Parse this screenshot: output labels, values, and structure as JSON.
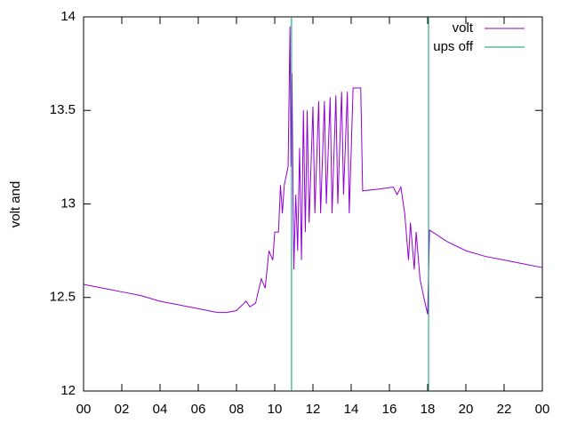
{
  "chart_data": {
    "type": "line",
    "ylabel": "volt and",
    "xlim": [
      0,
      24
    ],
    "xticks": [
      {
        "value": 0,
        "label": "00"
      },
      {
        "value": 2,
        "label": "02"
      },
      {
        "value": 4,
        "label": "04"
      },
      {
        "value": 6,
        "label": "06"
      },
      {
        "value": 8,
        "label": "08"
      },
      10,
      12,
      14,
      16,
      18,
      20,
      22,
      {
        "value": 24,
        "label": "00"
      }
    ],
    "ylim": [
      12,
      14
    ],
    "yticks": [
      12,
      12.5,
      13,
      13.5,
      14
    ],
    "legend": "top-right",
    "series": [
      {
        "name": "volt",
        "color": "#9400d3",
        "x": [
          0,
          1,
          2,
          3,
          4,
          5,
          6,
          7,
          7.5,
          8,
          8.3,
          8.5,
          8.7,
          9,
          9.3,
          9.5,
          9.7,
          9.9,
          10,
          10.2,
          10.3,
          10.4,
          10.5,
          10.7,
          10.8,
          10.85,
          10.9,
          11.0,
          11.1,
          11.2,
          11.3,
          11.4,
          11.5,
          11.6,
          11.7,
          11.8,
          12.0,
          12.1,
          12.3,
          12.4,
          12.6,
          12.7,
          12.9,
          13.0,
          13.2,
          13.3,
          13.5,
          13.6,
          13.8,
          13.9,
          14.1,
          14.5,
          14.6,
          15.5,
          16.2,
          16.4,
          16.6,
          16.8,
          17.0,
          17.1,
          17.3,
          17.4,
          17.6,
          17.8,
          18.0,
          18.05,
          18.1,
          19,
          20,
          21,
          22,
          23,
          24
        ],
        "values": [
          12.57,
          12.55,
          12.53,
          12.51,
          12.48,
          12.46,
          12.44,
          12.42,
          12.42,
          12.43,
          12.46,
          12.48,
          12.45,
          12.47,
          12.6,
          12.55,
          12.75,
          12.7,
          12.85,
          12.85,
          13.1,
          12.95,
          13.1,
          13.2,
          13.95,
          13.2,
          13.7,
          12.65,
          13.05,
          12.75,
          13.3,
          12.7,
          13.5,
          12.85,
          13.5,
          12.9,
          13.52,
          12.95,
          13.55,
          12.95,
          13.55,
          13.0,
          13.57,
          12.95,
          13.58,
          13.0,
          13.6,
          13.05,
          13.6,
          12.95,
          13.62,
          13.62,
          13.07,
          13.08,
          13.09,
          13.05,
          13.09,
          12.95,
          12.7,
          12.9,
          12.65,
          12.85,
          12.6,
          12.5,
          12.41,
          12.63,
          12.86,
          12.8,
          12.75,
          12.72,
          12.7,
          12.68,
          12.66
        ]
      },
      {
        "name": "ups off",
        "color": "#009e73",
        "x": [
          10.88,
          10.88,
          10.88,
          18.05,
          18.05
        ],
        "values": [
          12,
          14,
          null,
          12,
          14
        ]
      }
    ]
  }
}
